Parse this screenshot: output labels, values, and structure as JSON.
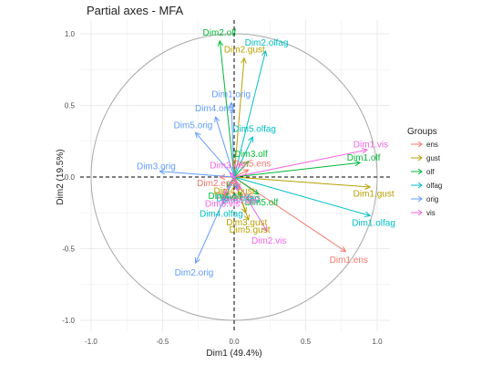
{
  "chart_data": {
    "type": "scatter",
    "title": "Partial axes - MFA",
    "xlabel": "Dim1 (49.4%)",
    "ylabel": "Dim2 (19.5%)",
    "xlim": [
      -1.0,
      1.0
    ],
    "ylim": [
      -1.0,
      1.0
    ],
    "xticks": [
      "-1.0",
      "-0.5",
      "0.0",
      "0.5",
      "1.0"
    ],
    "yticks": [
      "-1.0",
      "-0.5",
      "0.0",
      "0.5",
      "1.0"
    ],
    "grid": true,
    "unit_circle": true,
    "legend": {
      "title": "Groups",
      "position": "right",
      "entries": [
        {
          "name": "ens",
          "color": "#F8766D"
        },
        {
          "name": "gust",
          "color": "#B79F00"
        },
        {
          "name": "olf",
          "color": "#00BA38"
        },
        {
          "name": "olfag",
          "color": "#00BFC4"
        },
        {
          "name": "orig",
          "color": "#619CFF"
        },
        {
          "name": "vis",
          "color": "#F564E3"
        }
      ]
    },
    "series": [
      {
        "name": "ens",
        "color": "#F8766D",
        "points": [
          {
            "label": "Dim1.ens",
            "x": 0.78,
            "y": -0.52
          },
          {
            "label": "Dim2.ens",
            "x": -0.1,
            "y": 0.0
          },
          {
            "label": "Dim3.ens",
            "x": 0.0,
            "y": -0.06
          },
          {
            "label": "Dim4.ens",
            "x": 0.04,
            "y": -0.08
          },
          {
            "label": "Dim5.ens",
            "x": 0.1,
            "y": 0.05
          }
        ]
      },
      {
        "name": "gust",
        "color": "#B79F00",
        "points": [
          {
            "label": "Dim1.gust",
            "x": 0.95,
            "y": -0.07
          },
          {
            "label": "Dim2.gust",
            "x": 0.07,
            "y": 0.83
          },
          {
            "label": "Dim3.gust",
            "x": 0.08,
            "y": -0.25
          },
          {
            "label": "Dim4.gust",
            "x": 0.0,
            "y": -0.03
          },
          {
            "label": "Dim5.gust",
            "x": 0.1,
            "y": -0.3
          }
        ]
      },
      {
        "name": "olf",
        "color": "#00BA38",
        "points": [
          {
            "label": "Dim1.olf",
            "x": 0.88,
            "y": 0.1
          },
          {
            "label": "Dim2.olf",
            "x": -0.1,
            "y": 0.95
          },
          {
            "label": "Dim3.olf",
            "x": 0.1,
            "y": 0.11
          },
          {
            "label": "Dim4.olf",
            "x": -0.05,
            "y": -0.07
          },
          {
            "label": "Dim5.olf",
            "x": 0.17,
            "y": -0.12
          }
        ]
      },
      {
        "name": "olfag",
        "color": "#00BFC4",
        "points": [
          {
            "label": "Dim1.olfag",
            "x": 0.95,
            "y": -0.27
          },
          {
            "label": "Dim2.olfag",
            "x": 0.22,
            "y": 0.88
          },
          {
            "label": "Dim3.olfag",
            "x": 0.02,
            "y": -0.08
          },
          {
            "label": "Dim4.olfag",
            "x": -0.08,
            "y": -0.19
          },
          {
            "label": "Dim5.olfag",
            "x": 0.13,
            "y": 0.28
          }
        ]
      },
      {
        "name": "orig",
        "color": "#619CFF",
        "points": [
          {
            "label": "Dim1.orig",
            "x": -0.02,
            "y": 0.52
          },
          {
            "label": "Dim2.orig",
            "x": -0.27,
            "y": -0.6
          },
          {
            "label": "Dim3.orig",
            "x": -0.52,
            "y": 0.04
          },
          {
            "label": "Dim4.orig",
            "x": -0.13,
            "y": 0.42
          },
          {
            "label": "Dim5.orig",
            "x": -0.27,
            "y": 0.31
          }
        ]
      },
      {
        "name": "vis",
        "color": "#F564E3",
        "points": [
          {
            "label": "Dim1.vis",
            "x": 0.93,
            "y": 0.19
          },
          {
            "label": "Dim2.vis",
            "x": 0.23,
            "y": -0.38
          },
          {
            "label": "Dim3.vis",
            "x": -0.03,
            "y": 0.03
          },
          {
            "label": "Dim4.vis",
            "x": 0.03,
            "y": -0.1
          },
          {
            "label": "Dim5.vis",
            "x": -0.07,
            "y": -0.12
          }
        ]
      }
    ]
  }
}
